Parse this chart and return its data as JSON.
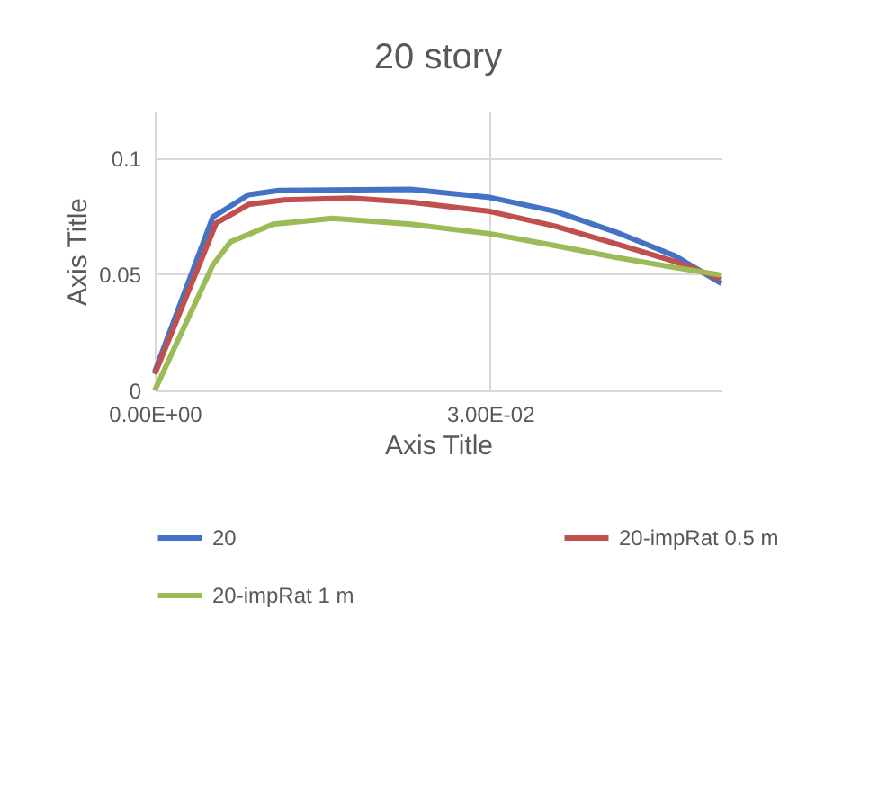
{
  "chart_data": {
    "type": "line",
    "title": "20 story",
    "xlabel": "Axis Title",
    "ylabel": "Axis Title",
    "xlim": [
      0,
      0.0507
    ],
    "xticks": [
      {
        "value": 0,
        "label": "0.00E+00"
      },
      {
        "value": 0.03,
        "label": "3.00E-02"
      }
    ],
    "ylim": [
      0,
      0.12
    ],
    "yticks": [
      0,
      0.05,
      0.1
    ],
    "grid": true,
    "legend": "bottom",
    "marker": "none",
    "line_style": "solid",
    "series": [
      {
        "name": "20",
        "color": "#4472c4",
        "x": [
          0,
          0.0052,
          0.0084,
          0.0111,
          0.0229,
          0.03,
          0.0358,
          0.0412,
          0.0465,
          0.0507
        ],
        "values": [
          0.008,
          0.0746,
          0.0842,
          0.086,
          0.0865,
          0.083,
          0.0771,
          0.0682,
          0.058,
          0.046
        ]
      },
      {
        "name": "20-impRat 0.5 m",
        "color": "#c0504d",
        "x": [
          0,
          0.0055,
          0.0084,
          0.0116,
          0.0175,
          0.0229,
          0.03,
          0.0358,
          0.0412,
          0.0465,
          0.0507
        ],
        "values": [
          0.007,
          0.072,
          0.08,
          0.082,
          0.0827,
          0.081,
          0.077,
          0.0707,
          0.0631,
          0.0555,
          0.0478
        ]
      },
      {
        "name": "20-impRat 1 m",
        "color": "#9bbb59",
        "x": [
          0,
          0.0052,
          0.0068,
          0.0106,
          0.0159,
          0.0229,
          0.03,
          0.0358,
          0.0412,
          0.0465,
          0.0507
        ],
        "values": [
          0,
          0.054,
          0.064,
          0.0715,
          0.074,
          0.0715,
          0.0674,
          0.0623,
          0.0573,
          0.0529,
          0.0496
        ]
      }
    ]
  }
}
